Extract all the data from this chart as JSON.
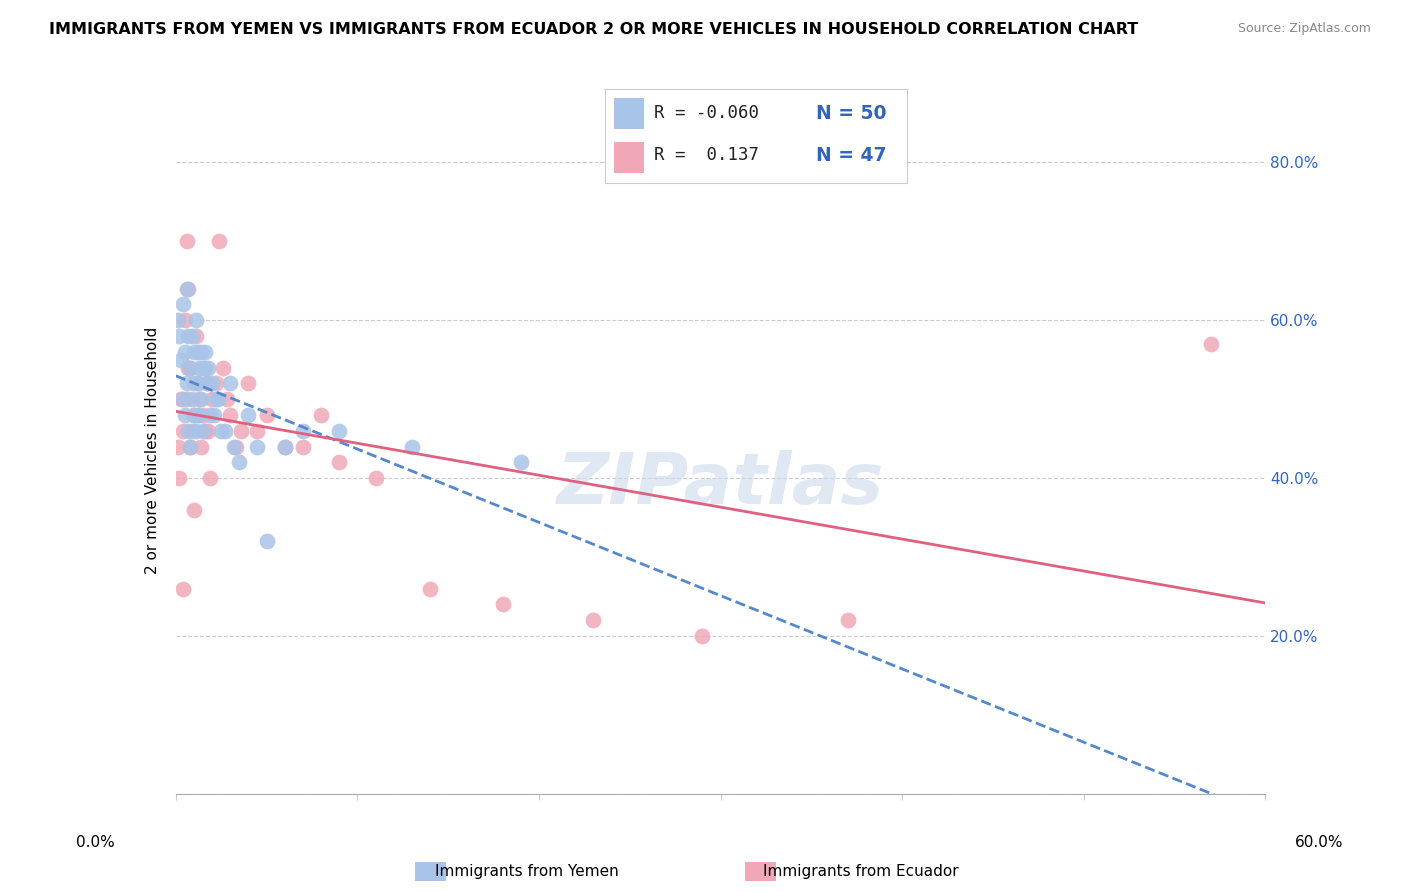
{
  "title": "IMMIGRANTS FROM YEMEN VS IMMIGRANTS FROM ECUADOR 2 OR MORE VEHICLES IN HOUSEHOLD CORRELATION CHART",
  "source": "Source: ZipAtlas.com",
  "ylabel": "2 or more Vehicles in Household",
  "y_ticks": [
    0.0,
    0.2,
    0.4,
    0.6,
    0.8
  ],
  "y_tick_labels": [
    "",
    "20.0%",
    "40.0%",
    "60.0%",
    "80.0%"
  ],
  "x_min": 0.0,
  "x_max": 0.6,
  "y_min": 0.0,
  "y_max": 0.87,
  "r_yemen": -0.06,
  "n_yemen": 50,
  "r_ecuador": 0.137,
  "n_ecuador": 47,
  "color_yemen": "#a8c4e8",
  "color_ecuador": "#f0a8b8",
  "line_color_yemen": "#5588cc",
  "line_color_ecuador": "#e06080",
  "legend_text_color": "#3366bb",
  "watermark": "ZIPatlas",
  "yemen_x": [
    0.001,
    0.002,
    0.003,
    0.004,
    0.004,
    0.005,
    0.005,
    0.006,
    0.006,
    0.007,
    0.007,
    0.008,
    0.008,
    0.009,
    0.009,
    0.01,
    0.01,
    0.01,
    0.011,
    0.011,
    0.012,
    0.012,
    0.013,
    0.013,
    0.014,
    0.014,
    0.015,
    0.015,
    0.016,
    0.016,
    0.017,
    0.018,
    0.019,
    0.02,
    0.021,
    0.022,
    0.023,
    0.025,
    0.027,
    0.03,
    0.032,
    0.035,
    0.04,
    0.045,
    0.05,
    0.06,
    0.07,
    0.09,
    0.13,
    0.19
  ],
  "yemen_y": [
    0.6,
    0.58,
    0.55,
    0.62,
    0.5,
    0.56,
    0.48,
    0.64,
    0.52,
    0.58,
    0.46,
    0.54,
    0.44,
    0.58,
    0.5,
    0.56,
    0.52,
    0.48,
    0.6,
    0.46,
    0.52,
    0.56,
    0.54,
    0.48,
    0.56,
    0.5,
    0.54,
    0.46,
    0.54,
    0.56,
    0.52,
    0.54,
    0.48,
    0.52,
    0.48,
    0.5,
    0.5,
    0.46,
    0.46,
    0.52,
    0.44,
    0.42,
    0.48,
    0.44,
    0.32,
    0.44,
    0.46,
    0.46,
    0.44,
    0.42
  ],
  "ecuador_x": [
    0.001,
    0.002,
    0.003,
    0.004,
    0.004,
    0.005,
    0.006,
    0.006,
    0.007,
    0.007,
    0.008,
    0.008,
    0.009,
    0.01,
    0.01,
    0.011,
    0.012,
    0.012,
    0.013,
    0.014,
    0.015,
    0.016,
    0.017,
    0.018,
    0.019,
    0.02,
    0.022,
    0.024,
    0.026,
    0.028,
    0.03,
    0.033,
    0.036,
    0.04,
    0.045,
    0.05,
    0.06,
    0.07,
    0.08,
    0.09,
    0.11,
    0.14,
    0.18,
    0.23,
    0.29,
    0.37,
    0.57
  ],
  "ecuador_y": [
    0.44,
    0.4,
    0.5,
    0.46,
    0.26,
    0.6,
    0.7,
    0.5,
    0.54,
    0.64,
    0.54,
    0.44,
    0.46,
    0.48,
    0.36,
    0.58,
    0.48,
    0.52,
    0.5,
    0.44,
    0.48,
    0.46,
    0.52,
    0.46,
    0.4,
    0.5,
    0.52,
    0.7,
    0.54,
    0.5,
    0.48,
    0.44,
    0.46,
    0.52,
    0.46,
    0.48,
    0.44,
    0.44,
    0.48,
    0.42,
    0.4,
    0.26,
    0.24,
    0.22,
    0.2,
    0.22,
    0.57
  ]
}
